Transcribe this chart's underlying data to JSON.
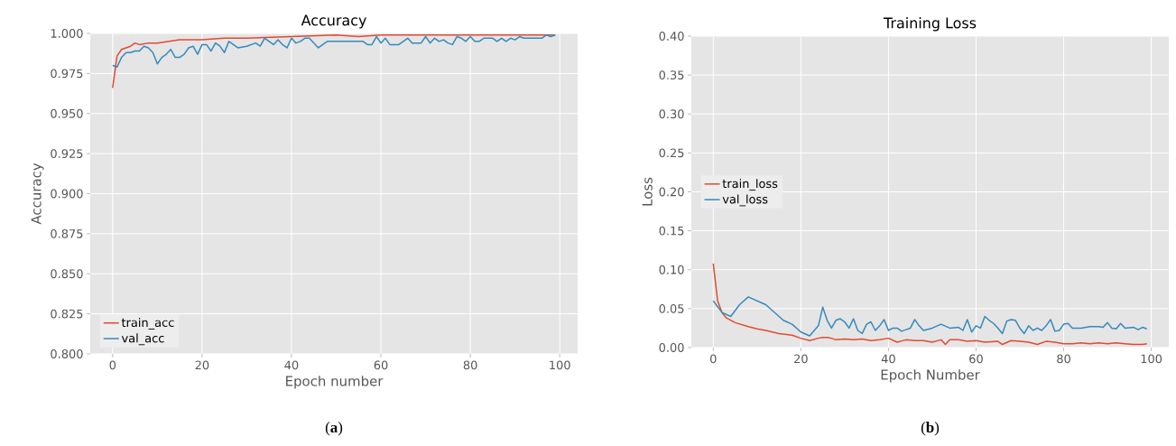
{
  "chart_data": [
    {
      "type": "line",
      "title": "Accuracy",
      "xlabel": "Epoch number",
      "ylabel": "Accuracy",
      "xlim": [
        -5,
        104
      ],
      "ylim": [
        0.8,
        1.0
      ],
      "xticks": [
        0,
        20,
        40,
        60,
        80,
        100
      ],
      "yticks": [
        {
          "value": 0.8,
          "label": "0.800"
        },
        {
          "value": 0.825,
          "label": "0.825"
        },
        {
          "value": 0.85,
          "label": "0.850"
        },
        {
          "value": 0.875,
          "label": "0.875"
        },
        {
          "value": 0.9,
          "label": "0.900"
        },
        {
          "value": 0.925,
          "label": "0.925"
        },
        {
          "value": 0.95,
          "label": "0.950"
        },
        {
          "value": 0.975,
          "label": "0.975"
        },
        {
          "value": 1.0,
          "label": "1.000"
        }
      ],
      "grid": true,
      "legend": "bottom left",
      "annotations": [
        "(**a**)"
      ],
      "series": [
        {
          "name": "train_acc",
          "color": "#e24a33",
          "x": [
            0,
            1,
            2,
            3,
            4,
            5,
            6,
            8,
            10,
            15,
            20,
            25,
            30,
            40,
            50,
            55,
            60,
            70,
            80,
            90,
            99
          ],
          "values": [
            0.966,
            0.986,
            0.99,
            0.991,
            0.992,
            0.994,
            0.993,
            0.994,
            0.994,
            0.996,
            0.996,
            0.997,
            0.997,
            0.998,
            0.999,
            0.998,
            0.999,
            0.999,
            0.999,
            0.999,
            0.999
          ]
        },
        {
          "name": "val_acc",
          "color": "#348abd",
          "x": [
            0,
            1,
            2,
            3,
            4,
            5,
            6,
            7,
            8,
            9,
            10,
            11,
            12,
            13,
            14,
            15,
            16,
            17,
            18,
            19,
            20,
            21,
            22,
            23,
            24,
            25,
            26,
            27,
            28,
            30,
            32,
            33,
            34,
            35,
            36,
            37,
            38,
            39,
            40,
            41,
            42,
            43,
            44,
            45,
            46,
            47,
            48,
            50,
            55,
            56,
            57,
            58,
            59,
            60,
            61,
            62,
            63,
            64,
            65,
            66,
            67,
            68,
            69,
            70,
            71,
            72,
            73,
            74,
            75,
            76,
            77,
            78,
            79,
            80,
            81,
            82,
            83,
            84,
            85,
            86,
            87,
            88,
            89,
            90,
            91,
            92,
            93,
            94,
            95,
            96,
            97,
            98,
            99
          ],
          "values": [
            0.98,
            0.979,
            0.985,
            0.988,
            0.988,
            0.989,
            0.989,
            0.992,
            0.991,
            0.988,
            0.981,
            0.985,
            0.987,
            0.99,
            0.985,
            0.985,
            0.987,
            0.991,
            0.992,
            0.987,
            0.993,
            0.993,
            0.989,
            0.994,
            0.992,
            0.988,
            0.995,
            0.993,
            0.991,
            0.992,
            0.994,
            0.992,
            0.997,
            0.995,
            0.993,
            0.996,
            0.993,
            0.991,
            0.997,
            0.994,
            0.995,
            0.997,
            0.997,
            0.994,
            0.991,
            0.993,
            0.995,
            0.995,
            0.995,
            0.995,
            0.993,
            0.993,
            0.998,
            0.994,
            0.997,
            0.993,
            0.993,
            0.993,
            0.995,
            0.997,
            0.994,
            0.994,
            0.994,
            0.998,
            0.994,
            0.997,
            0.995,
            0.996,
            0.994,
            0.993,
            0.998,
            0.997,
            0.995,
            0.998,
            0.995,
            0.995,
            0.997,
            0.997,
            0.997,
            0.995,
            0.997,
            0.995,
            0.997,
            0.996,
            0.998,
            0.997,
            0.997,
            0.997,
            0.997,
            0.997,
            0.999,
            0.998,
            0.999
          ]
        }
      ]
    },
    {
      "type": "line",
      "title": "Training Loss",
      "xlabel": "Epoch Number",
      "ylabel": "Loss",
      "xlim": [
        -5,
        104
      ],
      "ylim": [
        0,
        0.4
      ],
      "xticks": [
        0,
        20,
        40,
        60,
        80,
        100
      ],
      "yticks": [
        {
          "value": 0,
          "label": "0.00"
        },
        {
          "value": 0.05,
          "label": "0.05"
        },
        {
          "value": 0.1,
          "label": "0.10"
        },
        {
          "value": 0.15,
          "label": "0.15"
        },
        {
          "value": 0.2,
          "label": "0.20"
        },
        {
          "value": 0.25,
          "label": "0.25"
        },
        {
          "value": 0.3,
          "label": "0.30"
        },
        {
          "value": 0.35,
          "label": "0.35"
        },
        {
          "value": 0.4,
          "label": "0.40"
        }
      ],
      "grid": true,
      "legend": "left",
      "annotations": [
        "(**b**)"
      ],
      "series": [
        {
          "name": "train_loss",
          "color": "#e24a33",
          "x": [
            0,
            1,
            2,
            3,
            5,
            8,
            10,
            12,
            15,
            18,
            20,
            22,
            24,
            25,
            26,
            27,
            28,
            30,
            32,
            34,
            36,
            38,
            40,
            42,
            44,
            46,
            48,
            50,
            52,
            53,
            54,
            56,
            58,
            60,
            62,
            65,
            66,
            68,
            70,
            72,
            74,
            76,
            78,
            80,
            82,
            84,
            86,
            88,
            90,
            92,
            94,
            96,
            98,
            99
          ],
          "values": [
            0.108,
            0.06,
            0.045,
            0.038,
            0.032,
            0.027,
            0.024,
            0.022,
            0.018,
            0.016,
            0.012,
            0.009,
            0.012,
            0.013,
            0.013,
            0.012,
            0.01,
            0.011,
            0.01,
            0.011,
            0.009,
            0.01,
            0.012,
            0.007,
            0.01,
            0.009,
            0.009,
            0.007,
            0.01,
            0.004,
            0.01,
            0.01,
            0.008,
            0.009,
            0.007,
            0.008,
            0.004,
            0.009,
            0.008,
            0.007,
            0.004,
            0.008,
            0.007,
            0.005,
            0.005,
            0.006,
            0.005,
            0.006,
            0.005,
            0.006,
            0.005,
            0.004,
            0.004,
            0.005
          ]
        },
        {
          "name": "val_loss",
          "color": "#348abd",
          "x": [
            0,
            2,
            4,
            6,
            8,
            10,
            12,
            14,
            16,
            18,
            20,
            22,
            24,
            25,
            26,
            27,
            28,
            29,
            30,
            31,
            32,
            33,
            34,
            35,
            36,
            37,
            38,
            39,
            40,
            41,
            42,
            43,
            44,
            45,
            46,
            47,
            48,
            50,
            52,
            54,
            56,
            57,
            58,
            59,
            60,
            61,
            62,
            63,
            64,
            65,
            66,
            67,
            68,
            69,
            70,
            71,
            72,
            73,
            74,
            75,
            76,
            77,
            78,
            79,
            80,
            81,
            82,
            84,
            86,
            88,
            89,
            90,
            91,
            92,
            93,
            94,
            96,
            97,
            98,
            99
          ],
          "values": [
            0.06,
            0.045,
            0.04,
            0.055,
            0.065,
            0.06,
            0.055,
            0.045,
            0.035,
            0.03,
            0.02,
            0.015,
            0.028,
            0.052,
            0.035,
            0.025,
            0.035,
            0.037,
            0.033,
            0.025,
            0.037,
            0.022,
            0.018,
            0.03,
            0.033,
            0.022,
            0.028,
            0.036,
            0.022,
            0.025,
            0.025,
            0.021,
            0.023,
            0.025,
            0.036,
            0.028,
            0.022,
            0.025,
            0.03,
            0.025,
            0.026,
            0.022,
            0.036,
            0.02,
            0.028,
            0.025,
            0.04,
            0.035,
            0.031,
            0.025,
            0.018,
            0.034,
            0.036,
            0.035,
            0.025,
            0.018,
            0.028,
            0.022,
            0.025,
            0.022,
            0.028,
            0.036,
            0.021,
            0.022,
            0.03,
            0.031,
            0.025,
            0.025,
            0.027,
            0.027,
            0.026,
            0.032,
            0.025,
            0.024,
            0.031,
            0.025,
            0.026,
            0.023,
            0.026,
            0.024
          ]
        }
      ]
    }
  ]
}
